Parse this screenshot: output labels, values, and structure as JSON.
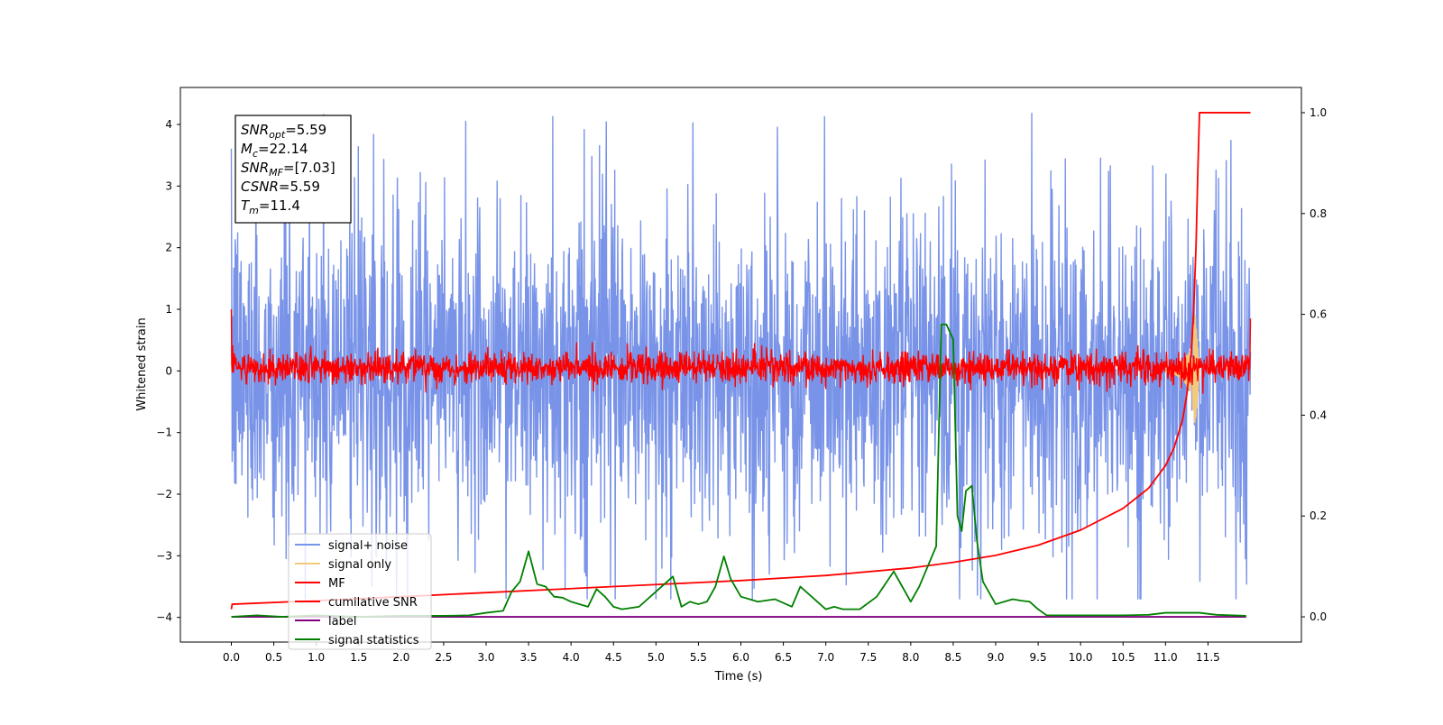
{
  "chart_data": {
    "type": "line",
    "xlabel": "Time (s)",
    "ylabel": "Whitened strain",
    "xlim": [
      -0.6,
      12.6
    ],
    "ylim": [
      -4.4,
      4.6
    ],
    "ylim_right": [
      -0.05,
      1.05
    ],
    "x_ticks": [
      "0.0",
      "0.5",
      "1.0",
      "1.5",
      "2.0",
      "2.5",
      "3.0",
      "3.5",
      "4.0",
      "4.5",
      "5.0",
      "5.5",
      "6.0",
      "6.5",
      "7.0",
      "7.5",
      "8.0",
      "8.5",
      "9.0",
      "9.5",
      "10.0",
      "10.5",
      "11.0",
      "11.5"
    ],
    "y_ticks": [
      "4",
      "3",
      "2",
      "1",
      "0",
      "−1",
      "−2",
      "−3",
      "−4"
    ],
    "y_ticks_right": [
      "1.0",
      "0.8",
      "0.6",
      "0.4",
      "0.2",
      "0.0"
    ],
    "annotation": {
      "lines": [
        {
          "base": "SNR",
          "sub": "opt",
          "rest": "=5.59"
        },
        {
          "base": "M",
          "sub": "c",
          "rest": "=22.14"
        },
        {
          "base": "SNR",
          "sub": "MF",
          "rest": "=[7.03]"
        },
        {
          "base": "CSNR",
          "sub": "",
          "rest": "=5.59"
        },
        {
          "base": "T",
          "sub": "m",
          "rest": "=11.4"
        }
      ]
    },
    "legend_position": "lower-left",
    "series": [
      {
        "name": "signal+ noise",
        "color": "#7893e8",
        "axis": "left",
        "style": "noise band",
        "x_range": [
          0.0,
          12.0
        ],
        "y_typical_range": [
          -2.6,
          2.6
        ],
        "y_extremes": [
          -3.7,
          4.18
        ]
      },
      {
        "name": "signal only",
        "color": "#f5c97a",
        "axis": "left",
        "style": "chirp",
        "x": [
          11.0,
          11.1,
          11.2,
          11.3,
          11.35,
          11.4
        ],
        "envelope": [
          0.02,
          0.05,
          0.12,
          0.35,
          0.9,
          0.0
        ]
      },
      {
        "name": "MF",
        "color": "#ff0000",
        "axis": "left",
        "style": "noise band",
        "x_range": [
          0.0,
          12.0
        ],
        "y_typical_range": [
          -0.2,
          0.3
        ],
        "edges": {
          "start": 1.0,
          "end": 0.85
        }
      },
      {
        "name": "cumilative SNR",
        "color": "#ff0000",
        "axis": "right",
        "x": [
          0.0,
          0.01,
          1.0,
          2.0,
          3.0,
          4.0,
          5.0,
          6.0,
          7.0,
          8.0,
          8.5,
          9.0,
          9.5,
          10.0,
          10.5,
          10.8,
          11.0,
          11.1,
          11.2,
          11.25,
          11.3,
          11.33,
          11.36,
          11.38,
          11.4,
          12.0
        ],
        "values": [
          0.015,
          0.025,
          0.032,
          0.04,
          0.048,
          0.056,
          0.064,
          0.072,
          0.082,
          0.097,
          0.108,
          0.122,
          0.142,
          0.172,
          0.215,
          0.255,
          0.3,
          0.335,
          0.39,
          0.44,
          0.52,
          0.6,
          0.74,
          0.88,
          1.0,
          1.0
        ]
      },
      {
        "name": "label",
        "color": "#800080",
        "axis": "right",
        "x": [
          0.0,
          11.95
        ],
        "values": [
          0.0,
          0.0
        ]
      },
      {
        "name": "signal statistics",
        "color": "#008000",
        "axis": "right",
        "x": [
          0.0,
          0.3,
          0.6,
          1.0,
          1.5,
          2.0,
          2.5,
          2.8,
          3.0,
          3.2,
          3.3,
          3.4,
          3.5,
          3.6,
          3.7,
          3.8,
          3.9,
          4.0,
          4.2,
          4.3,
          4.4,
          4.5,
          4.6,
          4.8,
          5.0,
          5.1,
          5.2,
          5.3,
          5.4,
          5.5,
          5.6,
          5.7,
          5.8,
          5.88,
          6.0,
          6.2,
          6.4,
          6.6,
          6.7,
          6.9,
          7.0,
          7.1,
          7.2,
          7.4,
          7.6,
          7.8,
          7.9,
          8.0,
          8.1,
          8.2,
          8.3,
          8.36,
          8.42,
          8.5,
          8.55,
          8.6,
          8.65,
          8.72,
          8.78,
          8.85,
          9.0,
          9.1,
          9.2,
          9.3,
          9.4,
          9.5,
          9.6,
          10.0,
          10.5,
          10.8,
          11.0,
          11.2,
          11.4,
          11.6,
          11.95
        ],
        "values": [
          0.0,
          0.003,
          0.0,
          0.003,
          0.0,
          0.002,
          0.002,
          0.003,
          0.008,
          0.012,
          0.05,
          0.07,
          0.13,
          0.065,
          0.06,
          0.04,
          0.038,
          0.03,
          0.02,
          0.055,
          0.04,
          0.02,
          0.015,
          0.02,
          0.05,
          0.065,
          0.08,
          0.02,
          0.03,
          0.025,
          0.03,
          0.06,
          0.12,
          0.075,
          0.04,
          0.03,
          0.035,
          0.02,
          0.06,
          0.03,
          0.015,
          0.02,
          0.015,
          0.015,
          0.04,
          0.09,
          0.06,
          0.03,
          0.06,
          0.1,
          0.14,
          0.58,
          0.58,
          0.55,
          0.2,
          0.17,
          0.25,
          0.26,
          0.15,
          0.07,
          0.025,
          0.03,
          0.035,
          0.032,
          0.03,
          0.015,
          0.003,
          0.003,
          0.003,
          0.004,
          0.008,
          0.008,
          0.008,
          0.004,
          0.002
        ]
      }
    ]
  }
}
